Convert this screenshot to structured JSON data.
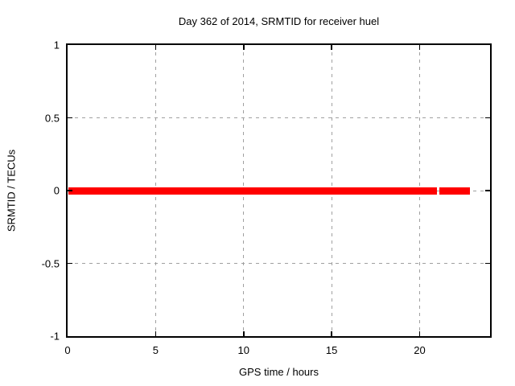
{
  "page": {
    "background": "#ffffff"
  },
  "chart_data": {
    "type": "scatter",
    "title": "Day 362 of 2014, SRMTID for receiver huel",
    "xlabel": "GPS time / hours",
    "ylabel": "SRMTID / TECUs",
    "xlim": [
      0,
      24
    ],
    "ylim": [
      -1,
      1
    ],
    "xticks": [
      0,
      5,
      10,
      15,
      20
    ],
    "yticks": [
      1,
      0.5,
      0,
      -0.5,
      -1
    ],
    "grid": true,
    "grid_style": "dashed",
    "legend": "none",
    "colors": {
      "grid": "#a0a0a0",
      "axis": "#000000",
      "background": "#ffffff"
    },
    "series": [
      {
        "name": "SRMTID",
        "color": "#ff0000",
        "marker": "filled-square",
        "marker_px": 9,
        "segments": [
          {
            "x_start": 0.05,
            "x_end": 20.98,
            "y": 0
          },
          {
            "x_start": 21.12,
            "x_end": 22.85,
            "y": 0
          }
        ]
      }
    ]
  }
}
